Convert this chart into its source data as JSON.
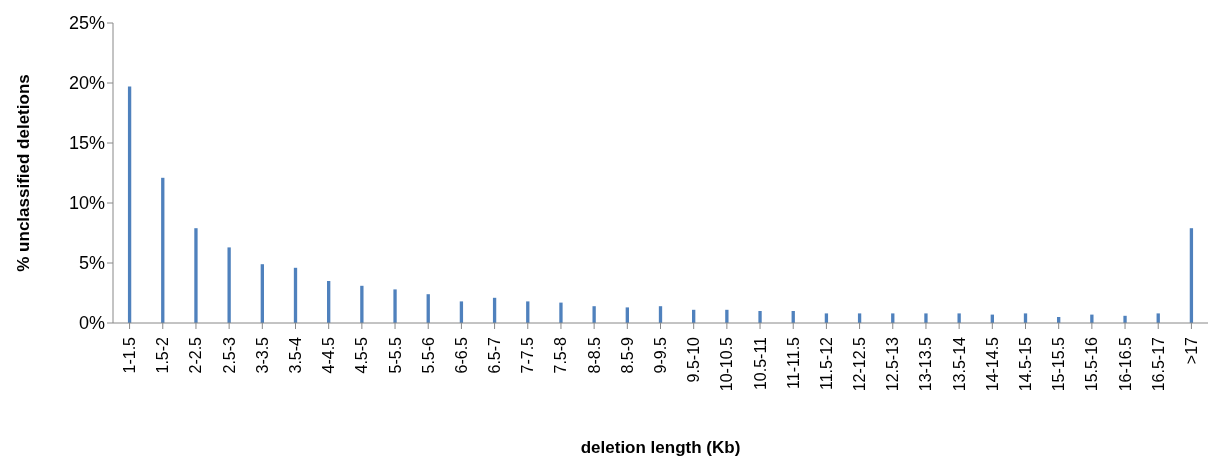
{
  "chart_data": {
    "type": "bar",
    "xlabel": "deletion length (Kb)",
    "ylabel": "% unclassified deletions",
    "categories": [
      "1-1.5",
      "1.5-2",
      "2-2.5",
      "2.5-3",
      "3-3.5",
      "3.5-4",
      "4-4.5",
      "4.5-5",
      "5-5.5",
      "5.5-6",
      "6-6.5",
      "6.5-7",
      "7-7.5",
      "7.5-8",
      "8-8.5",
      "8.5-9",
      "9-9.5",
      "9.5-10",
      "10-10.5",
      "10.5-11",
      "11-11.5",
      "11.5-12",
      "12-12.5",
      "12.5-13",
      "13-13.5",
      "13.5-14",
      "14-14.5",
      "14.5-15",
      "15-15.5",
      "15.5-16",
      "16-16.5",
      "16.5-17",
      ">17"
    ],
    "values": [
      19.7,
      12.1,
      7.9,
      6.3,
      4.9,
      4.6,
      3.5,
      3.1,
      2.8,
      2.4,
      1.8,
      2.1,
      1.8,
      1.7,
      1.4,
      1.3,
      1.4,
      1.1,
      1.1,
      1.0,
      1.0,
      0.8,
      0.8,
      0.8,
      0.8,
      0.8,
      0.7,
      0.8,
      0.5,
      0.7,
      0.6,
      0.8,
      7.9
    ],
    "color": "#4f81bd",
    "ylim": [
      0,
      25
    ],
    "yticks": [
      {
        "value": 0,
        "label": "0%"
      },
      {
        "value": 5,
        "label": "5%"
      },
      {
        "value": 10,
        "label": "10%"
      },
      {
        "value": 15,
        "label": "15%"
      },
      {
        "value": 20,
        "label": "20%"
      },
      {
        "value": 25,
        "label": "25%"
      }
    ],
    "grid": false
  }
}
